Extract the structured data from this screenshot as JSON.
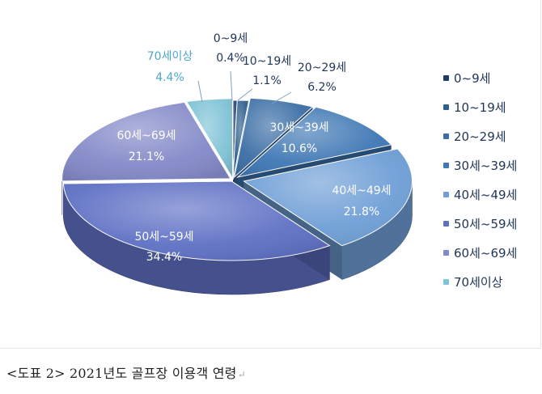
{
  "chart_data": {
    "type": "pie",
    "style": "3d-exploded",
    "categories": [
      "0~9세",
      "10~19세",
      "20~29세",
      "30세~39세",
      "40세~49세",
      "50세~59세",
      "60세~69세",
      "70세이상"
    ],
    "values": [
      0.4,
      1.1,
      6.2,
      10.6,
      21.8,
      34.4,
      21.1,
      4.4
    ],
    "value_labels": [
      "0.4%",
      "1.1%",
      "6.2%",
      "10.6%",
      "21.8%",
      "34.4%",
      "21.1%",
      "4.4%"
    ],
    "slice_labels": [
      "0~9세",
      "10~19세",
      "20~29세",
      "30세~39세",
      "40세~49세",
      "50세~59세",
      "60세~69세",
      "70세이상"
    ],
    "colors": [
      "#1f3c66",
      "#2f5f8e",
      "#3b6ea5",
      "#3f78b4",
      "#6f9fd6",
      "#5e70c4",
      "#8389c8",
      "#7fc3d6"
    ],
    "label_colors": [
      "#1f3556",
      "#1f3556",
      "#1f3556",
      "#ffffff",
      "#ffffff",
      "#ffffff",
      "#ffffff",
      "#4aa8c8"
    ],
    "legend_position": "right"
  },
  "caption": {
    "text": "<도표 2> 2021년도 골프장 이용객 연령",
    "return_mark": "↵"
  }
}
